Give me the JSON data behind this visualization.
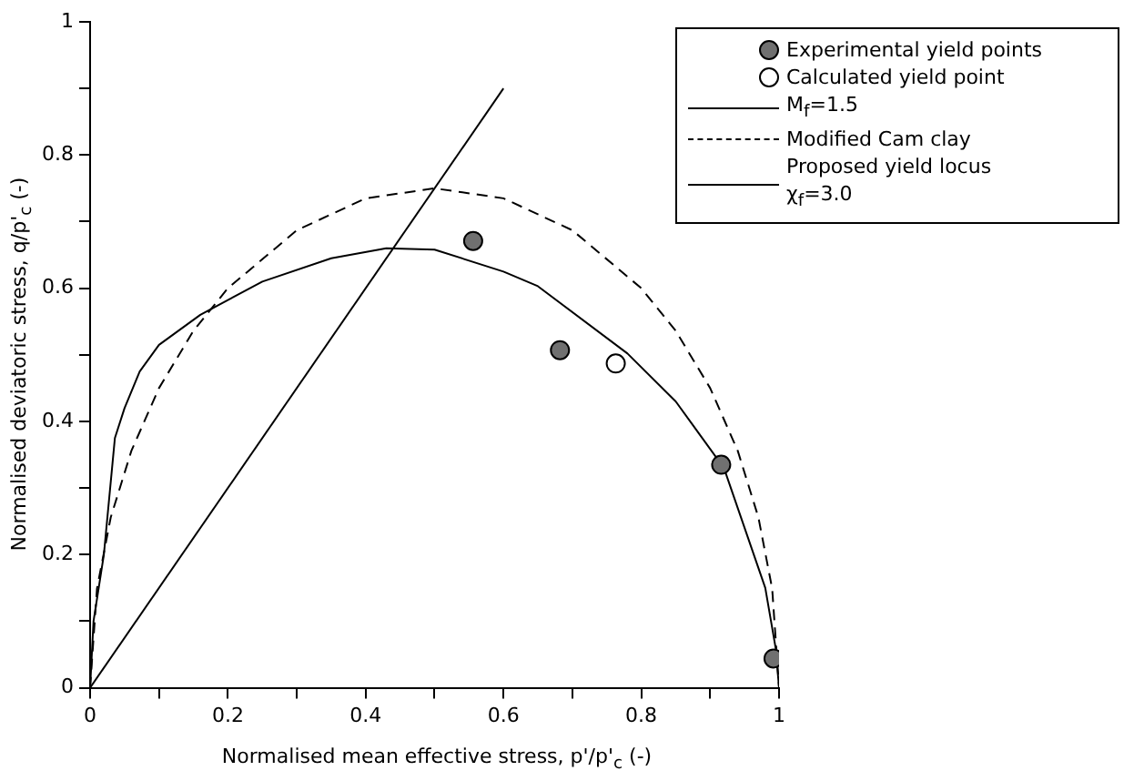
{
  "chart_data": {
    "type": "scatter",
    "xlabel": "Normalised mean effective stress, p'/p'$_{c}$ (-)",
    "ylabel": "Normalised deviatoric stress, q/p'$_{c}$ (-)",
    "xlim": [
      0,
      1
    ],
    "ylim": [
      0,
      1
    ],
    "xticks": [
      0,
      {
        "value": 0.1,
        "label": null
      },
      0.2,
      {
        "value": 0.3,
        "label": null
      },
      0.4,
      {
        "value": 0.5,
        "label": null
      },
      0.6,
      {
        "value": 0.7,
        "label": null
      },
      0.8,
      {
        "value": 0.9,
        "label": null
      },
      1
    ],
    "yticks": [
      0,
      {
        "value": 0.1,
        "label": null
      },
      0.2,
      {
        "value": 0.3,
        "label": null
      },
      0.4,
      {
        "value": 0.5,
        "label": null
      },
      0.6,
      {
        "value": 0.7,
        "label": null
      },
      0.8,
      {
        "value": 0.9,
        "label": null
      },
      1
    ],
    "grid": false,
    "legend": "top right",
    "series": [
      {
        "name": "Experimental yield points",
        "marker": "circle",
        "color": "#707070",
        "x": [
          0.556,
          0.682,
          0.916,
          0.992
        ],
        "values": [
          0.671,
          0.507,
          0.335,
          0.044
        ]
      },
      {
        "name": "Calculated yield point",
        "marker": "circle",
        "color": "#ffffff",
        "x": [
          0.763
        ],
        "values": [
          0.487
        ]
      },
      {
        "name": "M$_{f}$=1.5",
        "type": "line",
        "marker": "none",
        "line_style": "solid",
        "color": "#000000",
        "x": [
          0,
          0.6
        ],
        "values": [
          0,
          0.9
        ]
      },
      {
        "name": "Modified Cam clay",
        "type": "line",
        "marker": "none",
        "line_style": "dashed",
        "color": "#000000",
        "x": [
          0,
          0.01,
          0.03,
          0.06,
          0.1,
          0.15,
          0.2,
          0.3,
          0.4,
          0.5,
          0.6,
          0.7,
          0.8,
          0.85,
          0.9,
          0.94,
          0.97,
          0.99,
          1
        ],
        "values": [
          0,
          0.149,
          0.256,
          0.356,
          0.45,
          0.536,
          0.6,
          0.687,
          0.735,
          0.75,
          0.735,
          0.687,
          0.6,
          0.536,
          0.45,
          0.356,
          0.256,
          0.149,
          0
        ]
      },
      {
        "name": "Proposed yield locus χ$_{f}$=3.0",
        "type": "line",
        "marker": "none",
        "line_style": "solid",
        "color": "#000000",
        "x": [
          0,
          0.005,
          0.02,
          0.036,
          0.05,
          0.072,
          0.1,
          0.16,
          0.25,
          0.35,
          0.43,
          0.5,
          0.6,
          0.65,
          0.78,
          0.85,
          0.92,
          0.98,
          0.995,
          1
        ],
        "values": [
          0,
          0.1,
          0.2,
          0.375,
          0.42,
          0.475,
          0.515,
          0.56,
          0.61,
          0.645,
          0.66,
          0.658,
          0.625,
          0.603,
          0.502,
          0.43,
          0.33,
          0.15,
          0.06,
          0
        ]
      }
    ]
  }
}
